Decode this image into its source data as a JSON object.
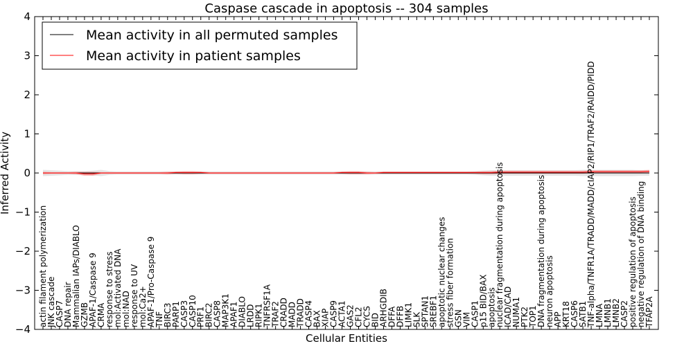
{
  "chart_data": {
    "type": "line",
    "title": "Caspase cascade in apoptosis -- 304 samples",
    "xlabel": "Cellular Entities",
    "ylabel": "Inferred Activity",
    "ylim": [
      -4,
      4
    ],
    "yticks": [
      -4,
      -3,
      -2,
      -1,
      0,
      1,
      2,
      3,
      4
    ],
    "ytick_labels": [
      "−4",
      "−3",
      "−2",
      "−1",
      "0",
      "1",
      "2",
      "3",
      "4"
    ],
    "legend_position": "top-left",
    "categories": [
      "actin filament polymerization",
      "JNK cascade",
      "CASP7",
      "DNA repair",
      "Mammalian IAPs/DIABLO",
      "GZMB",
      "APAF-1/Caspase 9",
      "CRMA",
      "response to stress",
      "mol:Activated DNA",
      "mol:NAD",
      "response to UV",
      "mol:Ca2+",
      "APAF-1/Pro-Caspase 9",
      "TNF",
      "BIRC3",
      "PARP1",
      "CASP3",
      "CASP10",
      "PRF1",
      "BIRC2",
      "CASP8",
      "MAP3K1",
      "APAF1",
      "DIABLO",
      "LRDD",
      "RIPK1",
      "TNFRSF1A",
      "TRAF2",
      "CRADD",
      "MADD",
      "TRADD",
      "CASP4",
      "BAX",
      "XIAP",
      "CASP9",
      "ACTA1",
      "GAS2",
      "CFL2",
      "CYCS",
      "BID",
      "ARHGDIB",
      "DFFA",
      "DFFB",
      "LIMK1",
      "SLK",
      "SPTAN1",
      "SREBF1",
      "apoptotic nuclear changes",
      "stress fiber formation",
      "GSN",
      "VIM",
      "CASP1",
      "p15 BID/BAX",
      "apoptosis",
      "nuclear fragmentation during apoptosis",
      "ICAD/CAD",
      "NUMA1",
      "PTK2",
      "TOP1",
      "DNA fragmentation during apoptosis",
      "neuron apoptosis",
      "APP",
      "KRT18",
      "CASP6",
      "SATB1",
      "TNF-alpha/TNFR1A/TRADD/MADD/cIAP2/RIP1/TRAF2/RAIDD/PIDD",
      "LMNA",
      "LMNB1",
      "LMNB2",
      "CASP2",
      "positive regulation of apoptosis",
      "negative regulation of DNA binding",
      "TFAP2A"
    ],
    "series": [
      {
        "name": "Mean activity in all permuted samples",
        "color": "#000000",
        "values": [
          0.0,
          0.0,
          0.0,
          0.0,
          0.0,
          0.0,
          0.0,
          0.0,
          0.0,
          0.0,
          0.0,
          0.0,
          0.0,
          0.0,
          0.0,
          0.0,
          0.0,
          0.0,
          0.0,
          0.0,
          0.0,
          0.0,
          0.0,
          0.0,
          0.0,
          0.0,
          0.0,
          0.0,
          0.0,
          0.0,
          0.0,
          0.0,
          0.0,
          0.0,
          0.0,
          0.0,
          0.0,
          0.0,
          0.0,
          0.0,
          0.0,
          0.0,
          0.0,
          0.0,
          0.0,
          0.0,
          0.0,
          0.0,
          0.0,
          0.0,
          0.0,
          0.0,
          0.0,
          0.0,
          0.0,
          0.0,
          0.0,
          0.0,
          0.0,
          0.0,
          0.0,
          0.0,
          0.0,
          0.0,
          0.0,
          0.0,
          0.0,
          0.0,
          0.0,
          0.0,
          0.0,
          0.0,
          0.0,
          0.0
        ],
        "band": [
          0.08,
          0.07,
          0.06,
          0.05,
          0.05,
          0.05,
          0.06,
          0.08,
          0.05,
          0.04,
          0.04,
          0.04,
          0.04,
          0.04,
          0.04,
          0.04,
          0.04,
          0.04,
          0.04,
          0.04,
          0.04,
          0.04,
          0.04,
          0.04,
          0.04,
          0.04,
          0.04,
          0.04,
          0.04,
          0.04,
          0.04,
          0.04,
          0.04,
          0.04,
          0.04,
          0.04,
          0.04,
          0.04,
          0.04,
          0.04,
          0.04,
          0.04,
          0.04,
          0.04,
          0.04,
          0.04,
          0.04,
          0.04,
          0.04,
          0.04,
          0.04,
          0.04,
          0.05,
          0.06,
          0.07,
          0.07,
          0.07,
          0.07,
          0.07,
          0.07,
          0.07,
          0.07,
          0.07,
          0.07,
          0.07,
          0.08,
          0.08,
          0.08,
          0.08,
          0.08,
          0.08,
          0.08,
          0.07,
          0.07
        ]
      },
      {
        "name": "Mean activity in patient samples",
        "color": "#ff0000",
        "values": [
          0.0,
          0.0,
          0.0,
          0.0,
          0.0,
          -0.02,
          -0.02,
          0.0,
          0.0,
          0.0,
          0.0,
          0.0,
          0.0,
          0.0,
          0.0,
          0.0,
          0.01,
          0.01,
          0.01,
          0.01,
          0.0,
          0.0,
          0.0,
          0.0,
          0.0,
          0.0,
          0.0,
          0.0,
          0.0,
          0.0,
          0.0,
          0.0,
          0.0,
          0.0,
          0.0,
          0.0,
          0.01,
          0.01,
          0.01,
          0.0,
          0.0,
          0.01,
          0.01,
          0.01,
          0.01,
          0.01,
          0.01,
          0.01,
          0.01,
          0.01,
          0.01,
          0.01,
          0.01,
          0.01,
          0.01,
          0.02,
          0.02,
          0.02,
          0.02,
          0.02,
          0.02,
          0.02,
          0.02,
          0.02,
          0.02,
          0.02,
          0.03,
          0.03,
          0.03,
          0.03,
          0.03,
          0.03,
          0.03,
          0.04
        ],
        "band": [
          0.03,
          0.02,
          0.02,
          0.02,
          0.03,
          0.05,
          0.05,
          0.02,
          0.02,
          0.02,
          0.02,
          0.02,
          0.02,
          0.02,
          0.02,
          0.03,
          0.03,
          0.04,
          0.04,
          0.03,
          0.02,
          0.02,
          0.02,
          0.02,
          0.02,
          0.02,
          0.02,
          0.02,
          0.02,
          0.02,
          0.02,
          0.02,
          0.02,
          0.02,
          0.02,
          0.02,
          0.03,
          0.04,
          0.04,
          0.03,
          0.02,
          0.03,
          0.03,
          0.03,
          0.03,
          0.03,
          0.03,
          0.03,
          0.03,
          0.03,
          0.03,
          0.03,
          0.03,
          0.04,
          0.04,
          0.04,
          0.04,
          0.04,
          0.04,
          0.04,
          0.04,
          0.04,
          0.04,
          0.04,
          0.04,
          0.04,
          0.04,
          0.04,
          0.04,
          0.04,
          0.04,
          0.04,
          0.04,
          0.04
        ]
      }
    ]
  }
}
